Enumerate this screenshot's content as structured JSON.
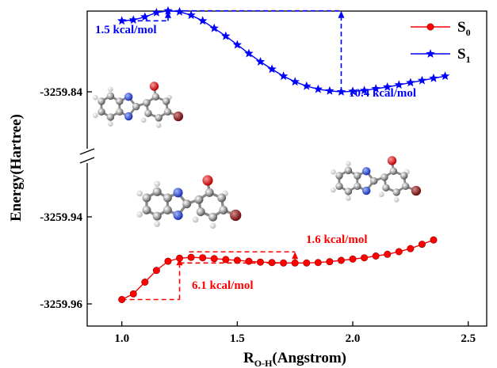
{
  "chart_data": {
    "type": "line",
    "xlabel": "R",
    "xlabel_sub": "O-H",
    "xlabel_suffix": "(Angstrom)",
    "ylabel": "Energy(Hartree)",
    "xlim": [
      0.85,
      2.58
    ],
    "x_ticks": [
      "1.0",
      "1.5",
      "2.0",
      "2.5"
    ],
    "y_ticks": [
      "-3259.84",
      "-3259.94",
      "-3259.96"
    ],
    "axis_break": "y-axis broken between -3259.94 and -3259.84",
    "legend_position": "top-right",
    "series": [
      {
        "name": "S",
        "name_sub": "0",
        "color": "#ff0000",
        "marker": "circle",
        "x": [
          1.0,
          1.05,
          1.1,
          1.15,
          1.2,
          1.25,
          1.3,
          1.35,
          1.4,
          1.45,
          1.5,
          1.55,
          1.6,
          1.65,
          1.7,
          1.75,
          1.8,
          1.85,
          1.9,
          1.95,
          2.0,
          2.05,
          2.1,
          2.15,
          2.2,
          2.25,
          2.3,
          2.35
        ],
        "y": [
          -3259.959,
          -3259.9577,
          -3259.955,
          -3259.9523,
          -3259.9502,
          -3259.9495,
          -3259.9493,
          -3259.9494,
          -3259.9496,
          -3259.9498,
          -3259.95,
          -3259.9502,
          -3259.9504,
          -3259.9505,
          -3259.9506,
          -3259.9506,
          -3259.9506,
          -3259.9505,
          -3259.9503,
          -3259.95,
          -3259.9497,
          -3259.9494,
          -3259.949,
          -3259.9486,
          -3259.948,
          -3259.9473,
          -3259.9463,
          -3259.9453
        ]
      },
      {
        "name": "S",
        "name_sub": "1",
        "color": "#0000ff",
        "marker": "star",
        "x": [
          1.0,
          1.05,
          1.1,
          1.15,
          1.2,
          1.25,
          1.3,
          1.35,
          1.4,
          1.45,
          1.5,
          1.55,
          1.6,
          1.65,
          1.7,
          1.75,
          1.8,
          1.85,
          1.9,
          1.95,
          2.0,
          2.05,
          2.1,
          2.15,
          2.2,
          2.25,
          2.3,
          2.35,
          2.4
        ],
        "y": [
          -3259.8237,
          -3259.8235,
          -3259.8228,
          -3259.8218,
          -3259.8214,
          -3259.8216,
          -3259.8224,
          -3259.8237,
          -3259.8254,
          -3259.8272,
          -3259.8292,
          -3259.8312,
          -3259.8331,
          -3259.8348,
          -3259.8364,
          -3259.8377,
          -3259.8387,
          -3259.8394,
          -3259.8398,
          -3259.84,
          -3259.8399,
          -3259.8397,
          -3259.8393,
          -3259.8389,
          -3259.8384,
          -3259.8379,
          -3259.8374,
          -3259.8369,
          -3259.8364
        ]
      }
    ],
    "annotations": [
      {
        "text": "1.5 kcal/mol",
        "color": "#0000ff"
      },
      {
        "text": "10.4 kcal/mol",
        "color": "#0000ff"
      },
      {
        "text": "1.6 kcal/mol",
        "color": "#ff0000"
      },
      {
        "text": "6.1 kcal/mol",
        "color": "#ff0000"
      }
    ]
  }
}
